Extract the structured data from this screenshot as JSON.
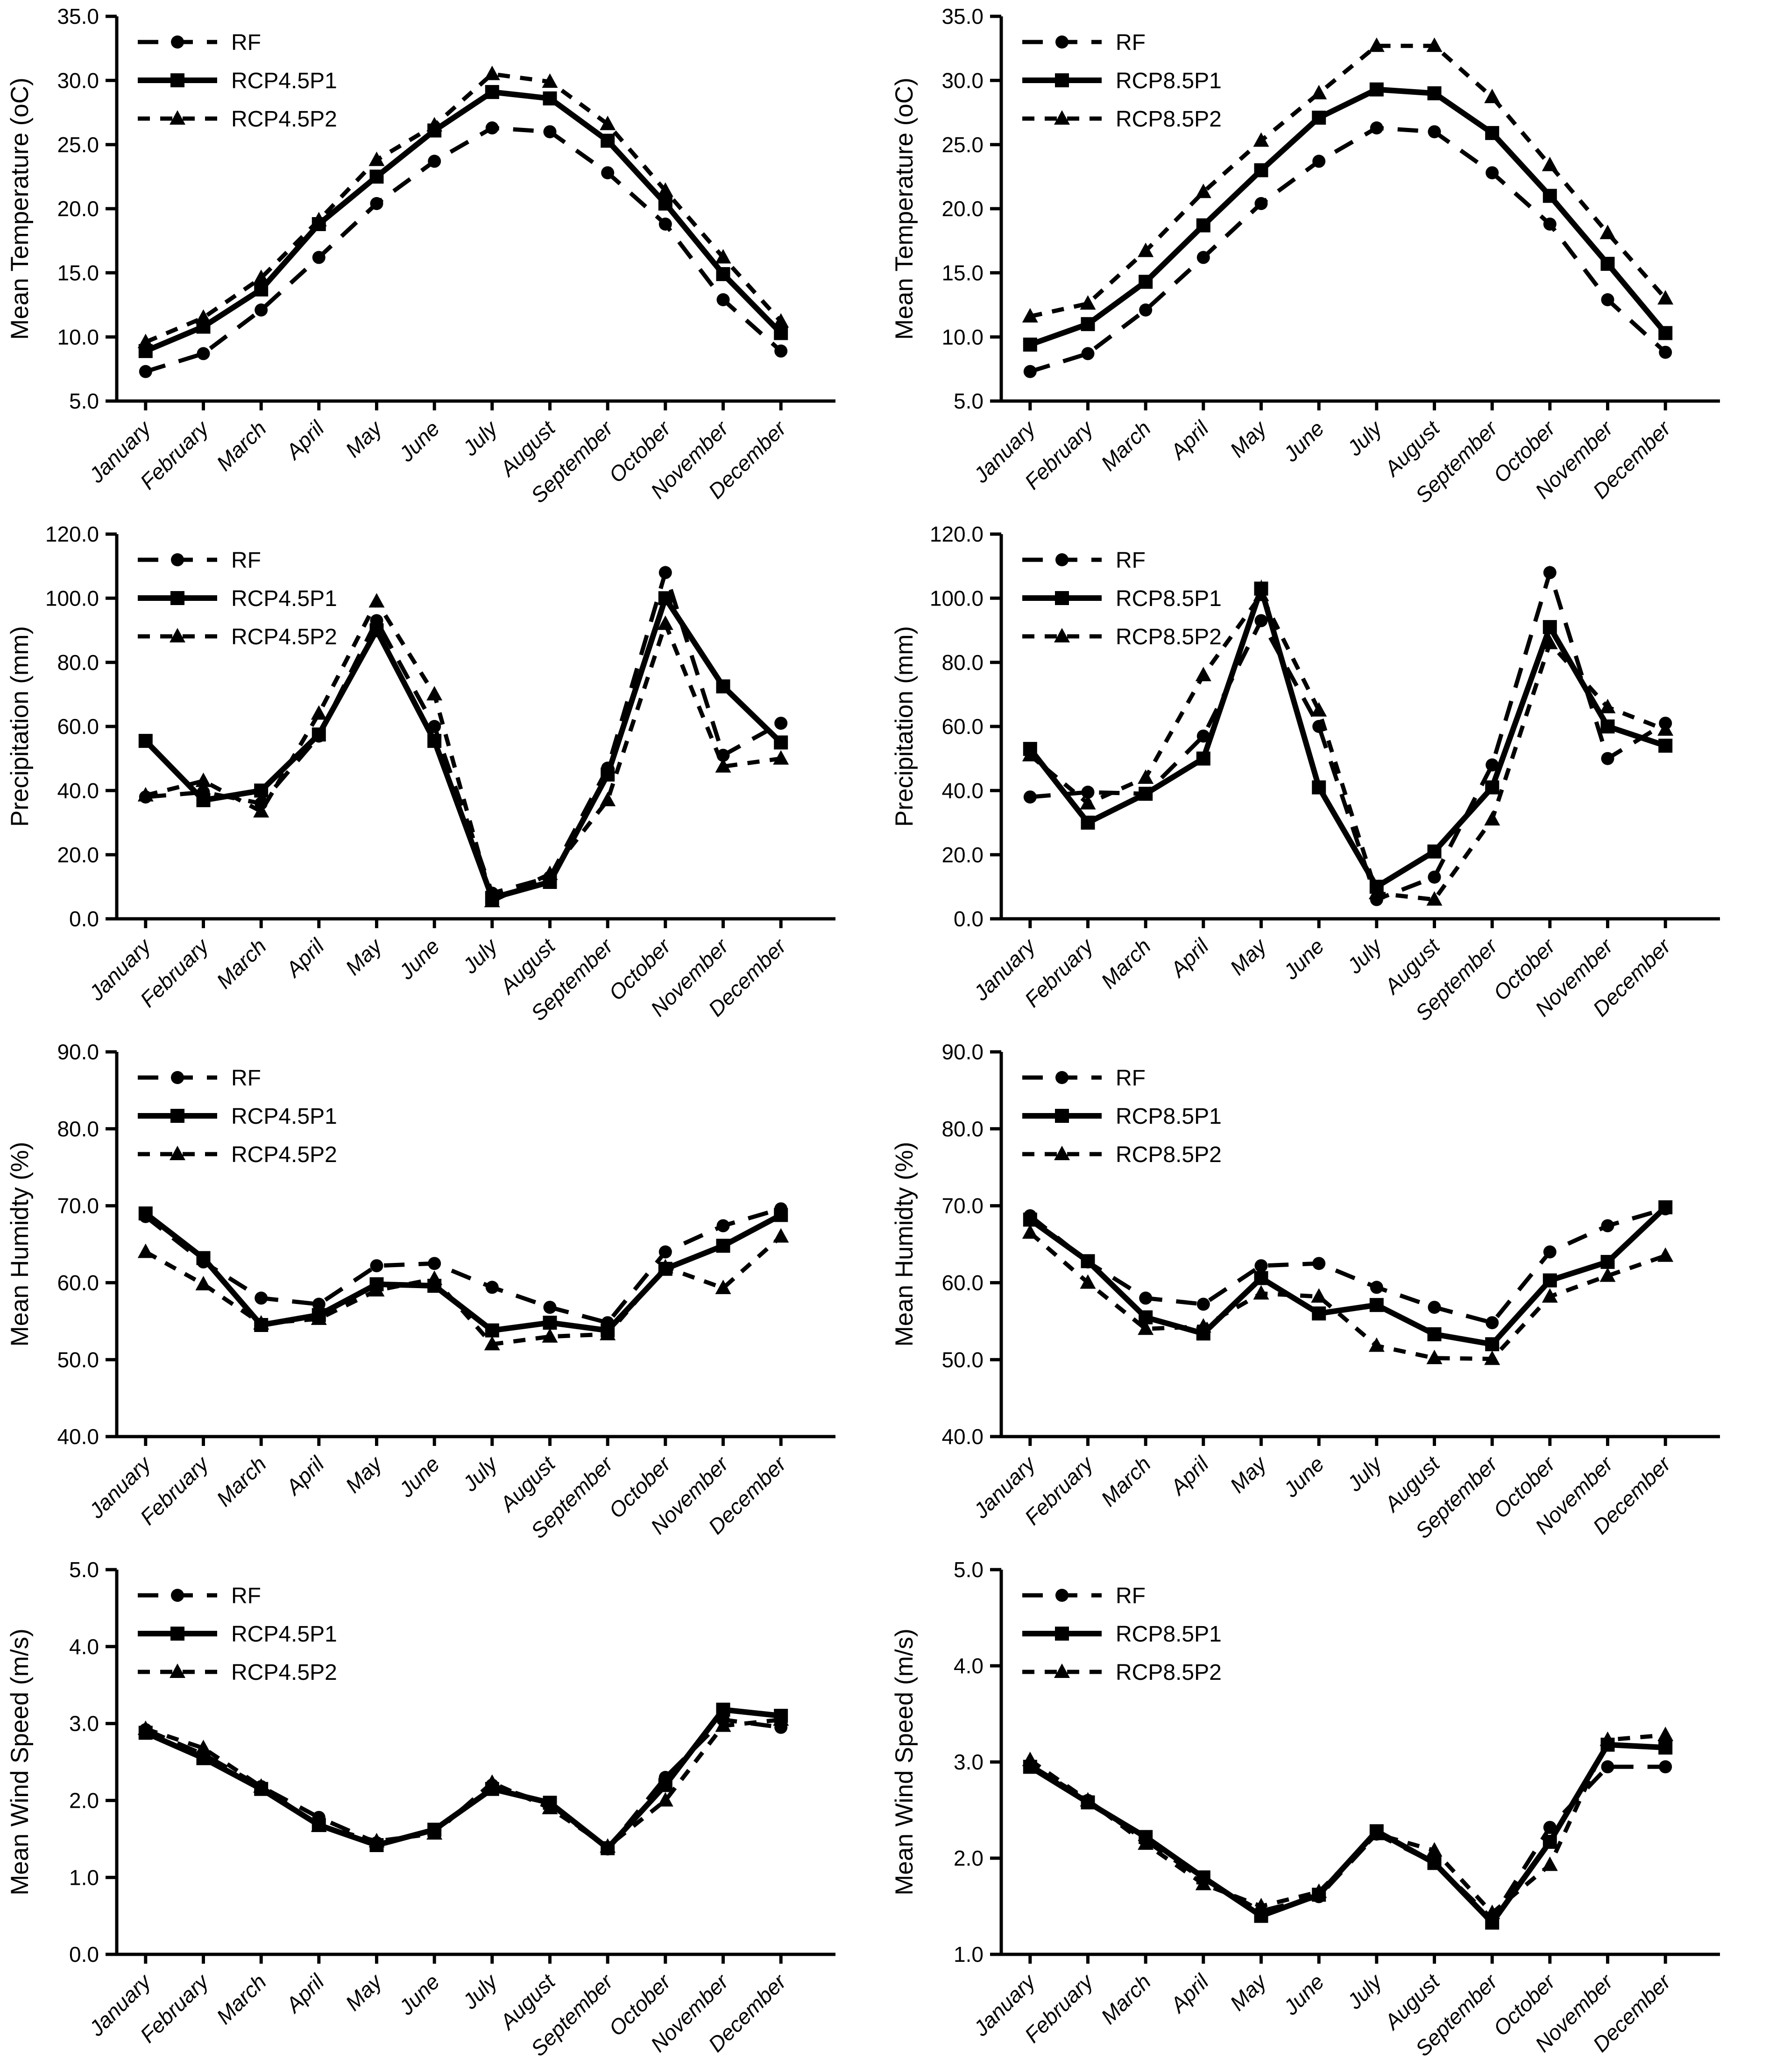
{
  "page": {
    "background": "#ffffff",
    "ink_color": "#000000",
    "description_months": [
      "January",
      "February",
      "March",
      "April",
      "May",
      "June",
      "July",
      "August",
      "September",
      "October",
      "November",
      "December"
    ]
  },
  "months": [
    "January",
    "February",
    "March",
    "April",
    "May",
    "June",
    "July",
    "August",
    "September",
    "October",
    "November",
    "December"
  ],
  "line_styles": {
    "rf": {
      "line": "long-dash",
      "marker": "circle",
      "stroke_width": 9,
      "dash": "44 30"
    },
    "p1": {
      "line": "solid",
      "marker": "square",
      "stroke_width": 12,
      "dash": null
    },
    "p2": {
      "line": "short-dash",
      "marker": "triangle",
      "stroke_width": 9,
      "dash": "26 22"
    }
  },
  "chart_data": [
    {
      "id": "temperature-rcp45",
      "type": "line",
      "row": 1,
      "col": 1,
      "ylabel": "Mean Temperature (oC)",
      "xlabel": "",
      "ylim": [
        5.0,
        35.0
      ],
      "ytick_step": 5,
      "grid": false,
      "legend_position": "top-left",
      "series": [
        {
          "name": "RF",
          "style": "rf",
          "marker": "circle",
          "line": "long-dash",
          "values": [
            7.3,
            8.7,
            12.1,
            16.2,
            20.4,
            23.7,
            26.3,
            26.0,
            22.8,
            18.8,
            12.9,
            8.9
          ]
        },
        {
          "name": "RCP4.5P1",
          "style": "p1",
          "marker": "square",
          "line": "solid",
          "values": [
            8.9,
            10.8,
            13.7,
            18.8,
            22.5,
            26.1,
            29.1,
            28.6,
            25.3,
            20.4,
            14.9,
            10.3
          ]
        },
        {
          "name": "RCP4.5P2",
          "style": "p2",
          "marker": "triangle",
          "line": "short-dash",
          "values": [
            9.6,
            11.5,
            14.6,
            19.1,
            23.8,
            26.5,
            30.5,
            29.9,
            26.6,
            21.4,
            16.2,
            11.2
          ]
        }
      ]
    },
    {
      "id": "temperature-rcp85",
      "type": "line",
      "row": 1,
      "col": 2,
      "ylabel": "Mean Temperature (oC)",
      "xlabel": "",
      "ylim": [
        5.0,
        35.0
      ],
      "ytick_step": 5,
      "grid": false,
      "legend_position": "top-left",
      "series": [
        {
          "name": "RF",
          "style": "rf",
          "marker": "circle",
          "line": "long-dash",
          "values": [
            7.3,
            8.7,
            12.1,
            16.2,
            20.4,
            23.7,
            26.3,
            26.0,
            22.8,
            18.8,
            12.9,
            8.8
          ]
        },
        {
          "name": "RCP8.5P1",
          "style": "p1",
          "marker": "square",
          "line": "solid",
          "values": [
            9.4,
            11.0,
            14.3,
            18.7,
            23.0,
            27.1,
            29.3,
            29.0,
            25.9,
            21.0,
            15.7,
            10.3
          ]
        },
        {
          "name": "RCP8.5P2",
          "style": "p2",
          "marker": "triangle",
          "line": "short-dash",
          "values": [
            11.6,
            12.6,
            16.7,
            21.3,
            25.3,
            29.0,
            32.7,
            32.7,
            28.7,
            23.4,
            18.1,
            13.0
          ]
        }
      ]
    },
    {
      "id": "precipitation-rcp45",
      "type": "line",
      "row": 2,
      "col": 1,
      "ylabel": "Precipitation (mm)",
      "xlabel": "",
      "ylim": [
        0.0,
        120.0
      ],
      "ytick_step": 20,
      "grid": false,
      "legend_position": "top-left",
      "series": [
        {
          "name": "RF",
          "style": "rf",
          "marker": "circle",
          "line": "long-dash",
          "values": [
            38.0,
            39.5,
            36.0,
            57.0,
            93.0,
            60.0,
            8.0,
            13.0,
            47.0,
            108.0,
            51.0,
            61.0
          ]
        },
        {
          "name": "RCP4.5P1",
          "style": "p1",
          "marker": "square",
          "line": "solid",
          "values": [
            55.5,
            37.0,
            40.0,
            57.5,
            90.0,
            55.5,
            6.5,
            11.5,
            45.0,
            100.0,
            72.5,
            55.0
          ]
        },
        {
          "name": "RCP4.5P2",
          "style": "p2",
          "marker": "triangle",
          "line": "short-dash",
          "values": [
            38.5,
            43.0,
            33.5,
            64.0,
            99.0,
            70.0,
            5.5,
            14.0,
            37.0,
            92.0,
            47.5,
            50.0
          ]
        }
      ]
    },
    {
      "id": "precipitation-rcp85",
      "type": "line",
      "row": 2,
      "col": 2,
      "ylabel": "Precipitation (mm)",
      "xlabel": "",
      "ylim": [
        0.0,
        120.0
      ],
      "ytick_step": 20,
      "grid": false,
      "legend_position": "top-left",
      "series": [
        {
          "name": "RF",
          "style": "rf",
          "marker": "circle",
          "line": "long-dash",
          "values": [
            38.0,
            39.5,
            39.0,
            57.0,
            93.0,
            60.0,
            6.0,
            13.0,
            48.0,
            108.0,
            50.0,
            61.0
          ]
        },
        {
          "name": "RCP8.5P1",
          "style": "p1",
          "marker": "square",
          "line": "solid",
          "values": [
            53.0,
            30.0,
            39.0,
            50.0,
            103.0,
            41.0,
            10.0,
            21.0,
            41.0,
            91.0,
            60.0,
            54.0
          ]
        },
        {
          "name": "RCP8.5P2",
          "style": "p2",
          "marker": "triangle",
          "line": "short-dash",
          "values": [
            51.0,
            36.0,
            44.0,
            76.0,
            101.0,
            65.0,
            8.0,
            6.0,
            31.0,
            86.0,
            66.0,
            59.0
          ]
        }
      ]
    },
    {
      "id": "humidity-rcp45",
      "type": "line",
      "row": 3,
      "col": 1,
      "ylabel": "Mean Humidty  (%)",
      "xlabel": "",
      "ylim": [
        40.0,
        90.0
      ],
      "ytick_step": 10,
      "grid": false,
      "legend_position": "top-left",
      "series": [
        {
          "name": "RF",
          "style": "rf",
          "marker": "circle",
          "line": "long-dash",
          "values": [
            68.6,
            62.7,
            58.0,
            57.2,
            62.2,
            62.5,
            59.4,
            56.8,
            54.8,
            64.0,
            67.4,
            69.6
          ]
        },
        {
          "name": "RCP4.5P1",
          "style": "p1",
          "marker": "square",
          "line": "solid",
          "values": [
            69.0,
            63.2,
            54.5,
            55.8,
            59.8,
            59.6,
            53.8,
            54.8,
            53.8,
            61.8,
            64.8,
            68.8
          ]
        },
        {
          "name": "RCP4.5P2",
          "style": "p2",
          "marker": "triangle",
          "line": "short-dash",
          "values": [
            64.0,
            59.8,
            54.7,
            55.3,
            59.0,
            60.5,
            52.0,
            53.0,
            53.3,
            62.0,
            59.3,
            66.0
          ]
        }
      ]
    },
    {
      "id": "humidity-rcp85",
      "type": "line",
      "row": 3,
      "col": 2,
      "ylabel": "Mean Humidty  (%)",
      "xlabel": "",
      "ylim": [
        40.0,
        90.0
      ],
      "ytick_step": 10,
      "grid": false,
      "legend_position": "top-left",
      "series": [
        {
          "name": "RF",
          "style": "rf",
          "marker": "circle",
          "line": "long-dash",
          "values": [
            68.7,
            62.7,
            58.0,
            57.2,
            62.2,
            62.5,
            59.4,
            56.8,
            54.8,
            64.0,
            67.4,
            69.6
          ]
        },
        {
          "name": "RCP8.5P1",
          "style": "p1",
          "marker": "square",
          "line": "solid",
          "values": [
            68.2,
            62.8,
            55.5,
            53.4,
            60.6,
            56.0,
            57.1,
            53.3,
            52.0,
            60.3,
            62.7,
            69.8
          ]
        },
        {
          "name": "RCP8.5P2",
          "style": "p2",
          "marker": "triangle",
          "line": "short-dash",
          "values": [
            66.5,
            60.0,
            54.0,
            54.3,
            58.6,
            58.2,
            51.8,
            50.2,
            50.1,
            58.2,
            60.9,
            63.5
          ]
        }
      ]
    },
    {
      "id": "wind-speed-rcp45",
      "type": "line",
      "row": 4,
      "col": 1,
      "ylabel": "Mean Wind Speed (m/s)",
      "xlabel": "",
      "ylim": [
        0.0,
        5.0
      ],
      "ytick_step": 1,
      "grid": false,
      "legend_position": "top-left",
      "series": [
        {
          "name": "RF",
          "style": "rf",
          "marker": "circle",
          "line": "long-dash",
          "values": [
            2.92,
            2.6,
            2.18,
            1.78,
            1.45,
            1.6,
            2.2,
            1.95,
            1.37,
            2.3,
            3.05,
            2.95
          ]
        },
        {
          "name": "RCP4.5P1",
          "style": "p1",
          "marker": "square",
          "line": "solid",
          "values": [
            2.88,
            2.55,
            2.15,
            1.68,
            1.42,
            1.62,
            2.15,
            1.97,
            1.38,
            2.2,
            3.18,
            3.1
          ]
        },
        {
          "name": "RCP4.5P2",
          "style": "p2",
          "marker": "triangle",
          "line": "short-dash",
          "values": [
            2.93,
            2.68,
            2.18,
            1.67,
            1.47,
            1.57,
            2.23,
            1.9,
            1.4,
            2.0,
            2.97,
            3.05
          ]
        }
      ]
    },
    {
      "id": "wind-speed-rcp85",
      "type": "line",
      "row": 4,
      "col": 2,
      "ylabel": "Mean Wind Speed (m/s)",
      "xlabel": "",
      "ylim": [
        1.0,
        5.0
      ],
      "ytick_step": 1,
      "grid": false,
      "legend_position": "top-left",
      "series": [
        {
          "name": "RF",
          "style": "rf",
          "marker": "circle",
          "line": "long-dash",
          "values": [
            2.97,
            2.6,
            2.18,
            1.78,
            1.45,
            1.6,
            2.25,
            1.95,
            1.37,
            2.32,
            2.95,
            2.95
          ]
        },
        {
          "name": "RCP8.5P1",
          "style": "p1",
          "marker": "square",
          "line": "solid",
          "values": [
            2.95,
            2.58,
            2.22,
            1.8,
            1.4,
            1.62,
            2.28,
            1.95,
            1.33,
            2.17,
            3.18,
            3.15
          ]
        },
        {
          "name": "RCP8.5P2",
          "style": "p2",
          "marker": "triangle",
          "line": "short-dash",
          "values": [
            3.02,
            2.6,
            2.15,
            1.73,
            1.5,
            1.65,
            2.25,
            2.08,
            1.43,
            1.93,
            3.23,
            3.28
          ]
        }
      ]
    }
  ]
}
